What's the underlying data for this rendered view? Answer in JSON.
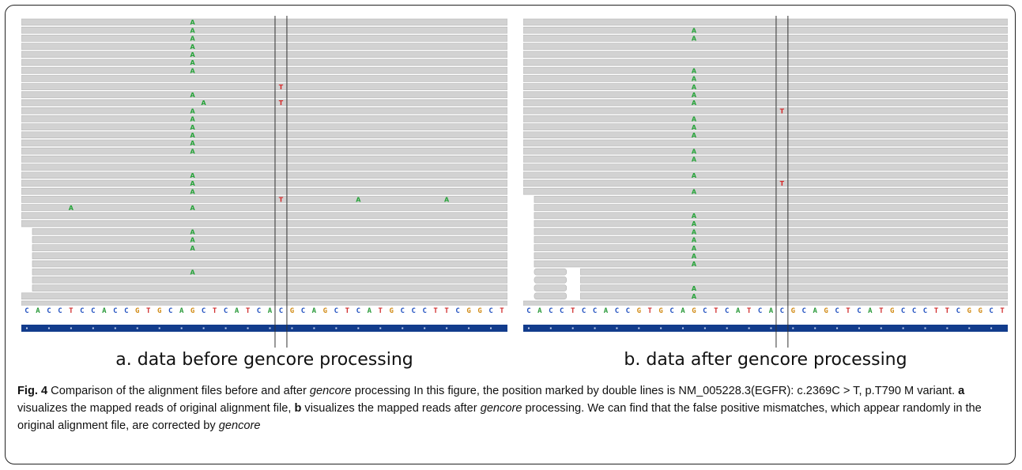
{
  "figure": {
    "reference_sequence": "CACCTCCACCGTGCAGCTCATCACGCAGCTCATGCCCTTCGGCT",
    "colors": {
      "read": "#d2d2d2",
      "read_edge": "#b4b4b4",
      "mismatch_A": "#27a33a",
      "mismatch_T": "#d62b2b",
      "seq_A": "#2a9a3a",
      "seq_C": "#2050c0",
      "seq_G": "#d18a13",
      "seq_T": "#d23030",
      "track": "#123c8c",
      "marker_line": "#333333"
    },
    "panels": [
      {
        "id": "a",
        "caption": "a. data before gencore processing",
        "mismatches": [
          {
            "row": 0,
            "col": 15,
            "base": "A"
          },
          {
            "row": 1,
            "col": 15,
            "base": "A"
          },
          {
            "row": 2,
            "col": 15,
            "base": "A"
          },
          {
            "row": 3,
            "col": 15,
            "base": "A"
          },
          {
            "row": 4,
            "col": 15,
            "base": "A"
          },
          {
            "row": 5,
            "col": 15,
            "base": "A"
          },
          {
            "row": 6,
            "col": 15,
            "base": "A"
          },
          {
            "row": 8,
            "col": 23,
            "base": "T"
          },
          {
            "row": 9,
            "col": 15,
            "base": "A"
          },
          {
            "row": 10,
            "col": 16,
            "base": "A"
          },
          {
            "row": 10,
            "col": 23,
            "base": "T"
          },
          {
            "row": 11,
            "col": 15,
            "base": "A"
          },
          {
            "row": 12,
            "col": 15,
            "base": "A"
          },
          {
            "row": 13,
            "col": 15,
            "base": "A"
          },
          {
            "row": 14,
            "col": 15,
            "base": "A"
          },
          {
            "row": 15,
            "col": 15,
            "base": "A"
          },
          {
            "row": 16,
            "col": 15,
            "base": "A"
          },
          {
            "row": 19,
            "col": 15,
            "base": "A"
          },
          {
            "row": 20,
            "col": 15,
            "base": "A"
          },
          {
            "row": 21,
            "col": 15,
            "base": "A"
          },
          {
            "row": 22,
            "col": 23,
            "base": "T"
          },
          {
            "row": 22,
            "col": 30,
            "base": "A"
          },
          {
            "row": 22,
            "col": 38,
            "base": "A"
          },
          {
            "row": 23,
            "col": 4,
            "base": "A"
          },
          {
            "row": 23,
            "col": 15,
            "base": "A"
          },
          {
            "row": 26,
            "col": 15,
            "base": "A"
          },
          {
            "row": 27,
            "col": 15,
            "base": "A"
          },
          {
            "row": 28,
            "col": 15,
            "base": "A"
          },
          {
            "row": 31,
            "col": 15,
            "base": "A"
          }
        ],
        "short_reads": [
          {
            "row": 26,
            "start": 1
          },
          {
            "row": 27,
            "start": 1
          },
          {
            "row": 28,
            "start": 1
          },
          {
            "row": 29,
            "start": 1
          },
          {
            "row": 30,
            "start": 1
          },
          {
            "row": 31,
            "start": 1
          },
          {
            "row": 32,
            "start": 1
          },
          {
            "row": 33,
            "start": 1
          }
        ]
      },
      {
        "id": "b",
        "caption": "b. data after gencore processing",
        "mismatches": [
          {
            "row": 1,
            "col": 15,
            "base": "A"
          },
          {
            "row": 2,
            "col": 15,
            "base": "A"
          },
          {
            "row": 6,
            "col": 15,
            "base": "A"
          },
          {
            "row": 7,
            "col": 15,
            "base": "A"
          },
          {
            "row": 8,
            "col": 15,
            "base": "A"
          },
          {
            "row": 9,
            "col": 15,
            "base": "A"
          },
          {
            "row": 10,
            "col": 15,
            "base": "A"
          },
          {
            "row": 11,
            "col": 23,
            "base": "T"
          },
          {
            "row": 12,
            "col": 15,
            "base": "A"
          },
          {
            "row": 13,
            "col": 15,
            "base": "A"
          },
          {
            "row": 14,
            "col": 15,
            "base": "A"
          },
          {
            "row": 16,
            "col": 15,
            "base": "A"
          },
          {
            "row": 17,
            "col": 15,
            "base": "A"
          },
          {
            "row": 19,
            "col": 15,
            "base": "A"
          },
          {
            "row": 20,
            "col": 23,
            "base": "T"
          },
          {
            "row": 21,
            "col": 15,
            "base": "A"
          },
          {
            "row": 24,
            "col": 15,
            "base": "A"
          },
          {
            "row": 25,
            "col": 15,
            "base": "A"
          },
          {
            "row": 26,
            "col": 15,
            "base": "A"
          },
          {
            "row": 27,
            "col": 15,
            "base": "A"
          },
          {
            "row": 28,
            "col": 15,
            "base": "A"
          },
          {
            "row": 29,
            "col": 15,
            "base": "A"
          },
          {
            "row": 30,
            "col": 15,
            "base": "A"
          },
          {
            "row": 33,
            "col": 15,
            "base": "A"
          },
          {
            "row": 34,
            "col": 15,
            "base": "A"
          }
        ],
        "short_reads": [
          {
            "row": 22,
            "start": 1
          },
          {
            "row": 23,
            "start": 1
          },
          {
            "row": 24,
            "start": 1
          },
          {
            "row": 25,
            "start": 1
          },
          {
            "row": 26,
            "start": 1
          },
          {
            "row": 27,
            "start": 1
          },
          {
            "row": 28,
            "start": 1
          },
          {
            "row": 29,
            "start": 1
          },
          {
            "row": 30,
            "start": 1
          },
          {
            "row": 31,
            "start": 1
          },
          {
            "row": 32,
            "start": 1
          },
          {
            "row": 33,
            "start": 1
          },
          {
            "row": 34,
            "start": 1
          }
        ],
        "clipped_reads": [
          {
            "row": 31,
            "end": 4
          },
          {
            "row": 32,
            "end": 4
          },
          {
            "row": 33,
            "end": 4
          },
          {
            "row": 34,
            "end": 4
          }
        ]
      }
    ],
    "variant_column": 23
  },
  "caption": {
    "label": "Fig. 4",
    "t1": " Comparison of the alignment files before and after ",
    "em1": "gencore",
    "t2": " processing In this figure, the position marked by double lines is NM_005228.3(EGFR): c.2369C > T, p.T790 M variant. ",
    "b1": "a",
    "t3": " visualizes the mapped reads of original alignment file, ",
    "b2": "b",
    "t4": " visualizes the mapped reads after ",
    "em2": "gencore",
    "t5": " processing. We can find that the false positive mismatches, which appear randomly in the original alignment file, are corrected by ",
    "em3": "gencore"
  }
}
